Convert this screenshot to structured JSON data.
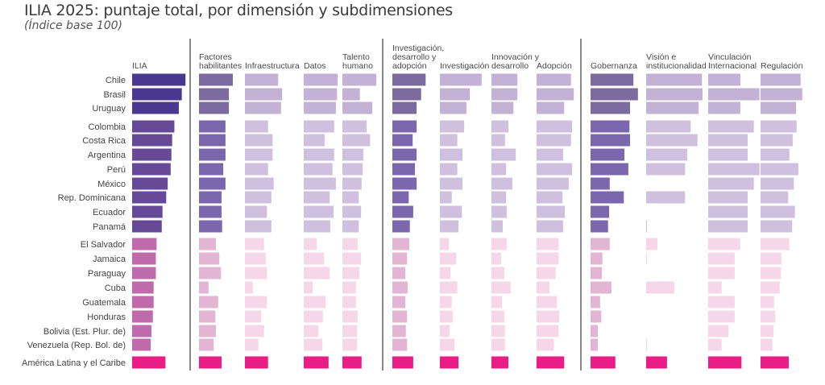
{
  "title": "ILIA 2025: puntaje total, por dimensión y subdimensiones",
  "subtitle": "(Índice base 100)",
  "colors": {
    "top_total": "#48388F",
    "top_dim": "#7B6B9E",
    "top_sub": "#C4B2D6",
    "mid_total": "#664A98",
    "mid_dim": "#7B67AD",
    "mid_sub": "#CFC0DF",
    "low_total": "#BF6BAB",
    "low_dim": "#E2B5D3",
    "low_sub": "#F5D7E8",
    "region": "#E91E85",
    "divider": "#888888"
  },
  "chart_data": {
    "type": "bar",
    "orientation": "horizontal",
    "title": "ILIA 2025: puntaje total, por dimensión y subdimensiones",
    "subtitle": "(Índice base 100)",
    "note": "Values estimated from bar lengths; no axis ticks are printed.",
    "categories": [
      "Chile",
      "Brasil",
      "Uruguay",
      "Colombia",
      "Costa Rica",
      "Argentina",
      "Perú",
      "México",
      "Rep. Dominicana",
      "Ecuador",
      "Panamá",
      "El Salvador",
      "Jamaica",
      "Paraguay",
      "Cuba",
      "Guatemala",
      "Honduras",
      "Bolivia (Est. Plur. de)",
      "Venezuela (Rep. Bol. de)",
      "América Latina y el Caribe"
    ],
    "category_groups": [
      "top",
      "top",
      "top",
      "mid",
      "mid",
      "mid",
      "mid",
      "mid",
      "mid",
      "mid",
      "mid",
      "low",
      "low",
      "low",
      "low",
      "low",
      "low",
      "low",
      "low",
      "region"
    ],
    "series": [
      {
        "name": "ILIA",
        "header": [
          "ILIA"
        ],
        "kind": "total",
        "section": 0,
        "values": [
          72,
          67,
          63,
          57,
          54,
          53,
          52,
          48,
          46,
          41,
          40,
          33,
          32,
          32,
          29,
          29,
          28,
          26,
          25,
          45
        ]
      },
      {
        "name": "Factores habilitantes",
        "header": [
          "Factores",
          "habilitantes"
        ],
        "kind": "dim",
        "section": 1,
        "values": [
          60,
          53,
          53,
          47,
          47,
          47,
          43,
          47,
          40,
          40,
          41,
          30,
          36,
          39,
          17,
          34,
          29,
          30,
          26,
          40
        ]
      },
      {
        "name": "Infraestructura",
        "header": [
          "Infraestructura"
        ],
        "kind": "sub",
        "section": 1,
        "values": [
          59,
          66,
          64,
          41,
          49,
          49,
          41,
          51,
          47,
          39,
          47,
          34,
          37,
          39,
          14,
          39,
          29,
          34,
          24,
          41
        ]
      },
      {
        "name": "Datos",
        "header": [
          "Datos"
        ],
        "kind": "sub",
        "section": 1,
        "values": [
          60,
          59,
          57,
          54,
          37,
          54,
          51,
          57,
          46,
          53,
          47,
          23,
          36,
          46,
          16,
          39,
          34,
          26,
          33,
          44
        ]
      },
      {
        "name": "Talento humano",
        "header": [
          "Talento",
          "humano"
        ],
        "kind": "sub",
        "section": 1,
        "values": [
          60,
          31,
          53,
          43,
          49,
          37,
          36,
          34,
          29,
          33,
          29,
          27,
          33,
          30,
          24,
          24,
          27,
          26,
          26,
          34
        ]
      },
      {
        "name": "Investigación, desarrollo y adopción",
        "header": [
          "Investigación,",
          "desarrollo y",
          "adopción"
        ],
        "kind": "dim",
        "section": 2,
        "values": [
          59,
          51,
          43,
          43,
          36,
          43,
          40,
          43,
          29,
          37,
          31,
          30,
          26,
          23,
          27,
          23,
          26,
          24,
          26,
          37
        ]
      },
      {
        "name": "Investigación",
        "header": [
          "Investigación"
        ],
        "kind": "sub",
        "section": 2,
        "values": [
          74,
          53,
          47,
          43,
          31,
          40,
          31,
          40,
          21,
          39,
          33,
          16,
          29,
          19,
          31,
          21,
          23,
          17,
          26,
          33
        ]
      },
      {
        "name": "Innovación y desarrollo",
        "header": [
          "Innovación y",
          "desarrollo"
        ],
        "kind": "sub",
        "section": 2,
        "values": [
          46,
          46,
          39,
          30,
          24,
          43,
          26,
          37,
          26,
          27,
          20,
          27,
          17,
          23,
          34,
          19,
          23,
          24,
          24,
          30
        ]
      },
      {
        "name": "Adopción",
        "header": [
          "Adopción"
        ],
        "kind": "sub",
        "section": 2,
        "values": [
          61,
          66,
          49,
          63,
          61,
          47,
          63,
          57,
          46,
          50,
          47,
          39,
          39,
          34,
          23,
          36,
          40,
          39,
          31,
          49
        ]
      },
      {
        "name": "Gobernanza",
        "header": [
          "Gobernanza"
        ],
        "kind": "dim",
        "section": 3,
        "values": [
          76,
          84,
          70,
          69,
          70,
          60,
          67,
          34,
          59,
          33,
          31,
          34,
          21,
          20,
          37,
          17,
          19,
          13,
          13,
          44
        ]
      },
      {
        "name": "Visión e institucionalidad",
        "header": [
          "Visión e",
          "institucionalidad"
        ],
        "kind": "sub",
        "section": 3,
        "values": [
          99,
          100,
          93,
          79,
          91,
          73,
          69,
          0,
          69,
          0,
          1,
          20,
          1,
          0,
          50,
          0,
          0,
          0,
          1,
          37
        ]
      },
      {
        "name": "Vinculación Internacional",
        "header": [
          "Vinculación",
          "Internacional"
        ],
        "kind": "sub",
        "section": 3,
        "values": [
          57,
          91,
          57,
          81,
          70,
          70,
          91,
          81,
          70,
          70,
          70,
          57,
          47,
          47,
          24,
          47,
          47,
          36,
          24,
          59
        ]
      },
      {
        "name": "Regulación",
        "header": [
          "Regulación"
        ],
        "kind": "sub",
        "section": 3,
        "values": [
          71,
          74,
          63,
          64,
          57,
          51,
          67,
          59,
          49,
          61,
          56,
          51,
          37,
          36,
          34,
          24,
          26,
          23,
          21,
          50
        ]
      }
    ],
    "xlabel": "",
    "ylabel": "",
    "xlim": [
      0,
      100
    ],
    "grid": false,
    "legend": "none"
  }
}
